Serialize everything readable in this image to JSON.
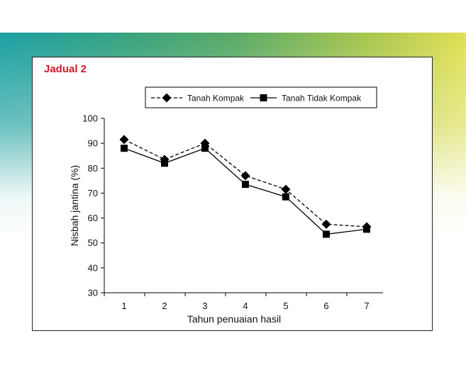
{
  "slide": {
    "title": "Jadual 2"
  },
  "chart_data": {
    "type": "line",
    "title": "",
    "xlabel": "Tahun penuaian hasil",
    "ylabel": "Nisbah jantina (%)",
    "categories": [
      "1",
      "2",
      "3",
      "4",
      "5",
      "6",
      "7"
    ],
    "ylim": [
      30,
      100
    ],
    "yticks": [
      "30",
      "40",
      "50",
      "60",
      "70",
      "80",
      "90",
      "100"
    ],
    "grid": false,
    "legend_placement": "top",
    "series": [
      {
        "name": "Tanah Kompak",
        "marker": "diamond",
        "line": "dashed",
        "color": "#000000",
        "values": [
          91.5,
          83.5,
          90,
          77,
          71.5,
          57.5,
          56.5
        ]
      },
      {
        "name": "Tanah Tidak Kompak",
        "marker": "square",
        "line": "solid",
        "color": "#000000",
        "values": [
          88,
          82,
          88,
          73.5,
          68.5,
          53.5,
          55.5
        ]
      }
    ]
  }
}
